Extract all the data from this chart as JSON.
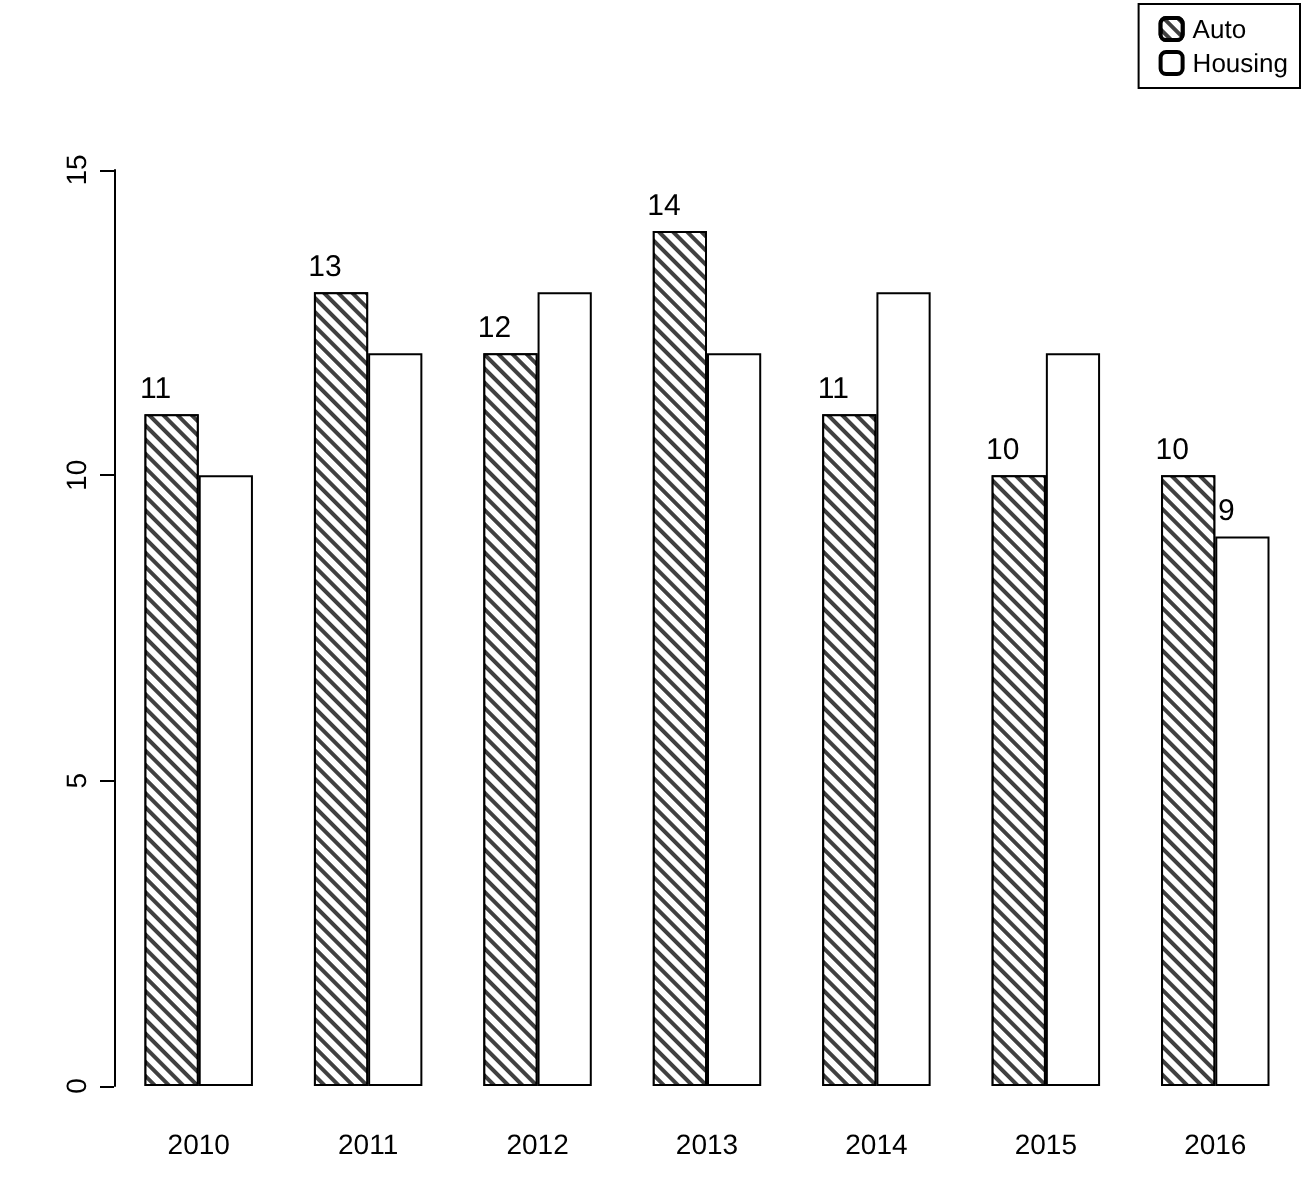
{
  "chart_data": {
    "type": "bar",
    "categories": [
      "2010",
      "2011",
      "2012",
      "2013",
      "2014",
      "2015",
      "2016"
    ],
    "series": [
      {
        "name": "Auto",
        "color": "#404040",
        "values": [
          11,
          13,
          12,
          14,
          11,
          10,
          10
        ],
        "value_labels": [
          "11",
          "13",
          "12",
          "14",
          "11",
          "10",
          "10"
        ]
      },
      {
        "name": "Housing",
        "color": "#ffffff",
        "values": [
          10,
          12,
          13,
          12,
          13,
          12,
          9
        ],
        "value_labels": [
          null,
          null,
          null,
          null,
          null,
          null,
          "9"
        ]
      }
    ],
    "ylim": [
      0,
      15
    ],
    "yticks": [
      0,
      5,
      10,
      15
    ],
    "grid": false,
    "legend": "top right"
  }
}
